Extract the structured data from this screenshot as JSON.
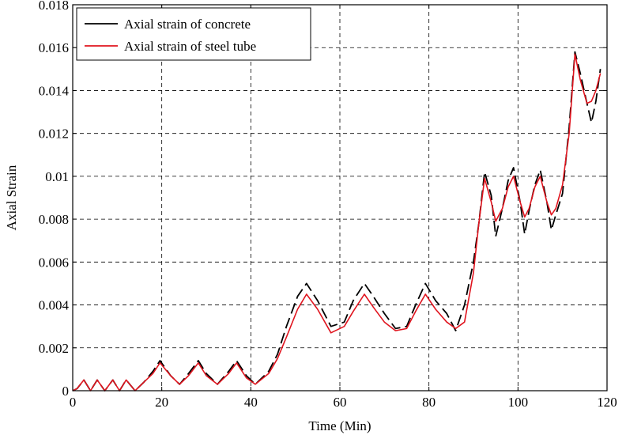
{
  "chart_data": {
    "type": "line",
    "title": "",
    "xlabel": "Time (Min)",
    "ylabel": "Axial Strain",
    "xlim": [
      0,
      120
    ],
    "ylim": [
      0,
      0.018
    ],
    "grid": true,
    "legend_position": "top-left",
    "x_ticks": [
      0,
      20,
      40,
      60,
      80,
      100,
      120
    ],
    "x_tick_labels": [
      "0",
      "20",
      "40",
      "60",
      "80",
      "100",
      "120"
    ],
    "y_ticks": [
      0,
      0.002,
      0.004,
      0.006,
      0.008,
      0.01,
      0.012,
      0.014,
      0.016,
      0.018
    ],
    "y_tick_labels": [
      "0",
      "0.002",
      "0.004",
      "0.006",
      "0.008",
      "0.01",
      "0.012",
      "0.014",
      "0.016",
      "0.018"
    ],
    "series": [
      {
        "name": "Axial strain of concrete",
        "color": "#000000",
        "style": "dashed",
        "x": [
          0,
          1,
          2.5,
          4,
          5.5,
          7.2,
          9,
          10.5,
          12,
          14,
          16,
          18,
          19.6,
          22,
          24,
          26,
          28.2,
          30,
          32.5,
          35,
          36.8,
          39,
          41,
          44,
          46,
          48,
          50.5,
          52.5,
          55,
          58,
          61,
          63,
          65.5,
          67.5,
          70,
          72.5,
          75,
          77,
          79.2,
          81.5,
          84,
          86,
          88,
          90,
          91.2,
          92.5,
          94,
          95,
          96.5,
          97.8,
          99,
          100.5,
          101.5,
          102.5,
          103.8,
          105,
          106.5,
          107.5,
          108.5,
          110,
          111.5,
          112.8,
          114,
          115.5,
          116.5,
          117.5,
          118.5
        ],
        "values": [
          0,
          0.0001,
          0.0005,
          0,
          0.0005,
          0,
          0.0005,
          0,
          0.0005,
          0,
          0.0004,
          0.0009,
          0.0014,
          0.0007,
          0.0003,
          0.0008,
          0.0014,
          0.0008,
          0.0003,
          0.0009,
          0.0014,
          0.0007,
          0.0003,
          0.0009,
          0.0017,
          0.003,
          0.0044,
          0.005,
          0.0042,
          0.003,
          0.0032,
          0.0042,
          0.005,
          0.0044,
          0.0036,
          0.0029,
          0.003,
          0.004,
          0.005,
          0.0042,
          0.0036,
          0.0028,
          0.004,
          0.006,
          0.0078,
          0.0102,
          0.0091,
          0.0072,
          0.0085,
          0.0098,
          0.0104,
          0.0088,
          0.0073,
          0.0084,
          0.0096,
          0.0103,
          0.0088,
          0.0075,
          0.0082,
          0.0092,
          0.0123,
          0.0158,
          0.0148,
          0.0134,
          0.0125,
          0.0135,
          0.015
        ]
      },
      {
        "name": "Axial strain of steel tube",
        "color": "#e0141e",
        "style": "solid",
        "x": [
          0,
          1,
          2.5,
          4,
          5.5,
          7.2,
          9,
          10.5,
          12,
          14,
          16,
          18,
          19.6,
          22,
          24,
          26,
          28.2,
          30,
          32.5,
          35,
          36.8,
          39,
          41,
          44,
          46,
          48,
          50.5,
          52.5,
          55,
          58,
          61,
          63,
          65.5,
          67.5,
          70,
          72.5,
          75,
          77,
          79.2,
          81.5,
          84,
          86,
          88,
          90,
          91.2,
          92.5,
          94,
          95,
          96.5,
          97.8,
          99,
          100.5,
          101.5,
          102.5,
          103.8,
          105,
          106.5,
          107.5,
          108.5,
          110,
          111.5,
          112.8,
          114,
          115.5,
          116.5,
          117.5,
          118.5
        ],
        "values": [
          0,
          0.0001,
          0.0005,
          0,
          0.0005,
          0,
          0.0005,
          0,
          0.0005,
          0,
          0.0004,
          0.0008,
          0.0013,
          0.0007,
          0.0003,
          0.0007,
          0.0013,
          0.0007,
          0.0003,
          0.0008,
          0.0013,
          0.0006,
          0.0003,
          0.0008,
          0.0015,
          0.0025,
          0.0038,
          0.0045,
          0.0038,
          0.0027,
          0.003,
          0.0037,
          0.0045,
          0.0039,
          0.0032,
          0.0028,
          0.0029,
          0.0037,
          0.0045,
          0.0038,
          0.0032,
          0.0029,
          0.0032,
          0.0055,
          0.0078,
          0.0099,
          0.0088,
          0.0079,
          0.0085,
          0.0095,
          0.01,
          0.0088,
          0.0081,
          0.0085,
          0.0095,
          0.01,
          0.0088,
          0.0082,
          0.0085,
          0.0096,
          0.012,
          0.0157,
          0.0145,
          0.0134,
          0.0135,
          0.014,
          0.0148
        ]
      }
    ]
  }
}
